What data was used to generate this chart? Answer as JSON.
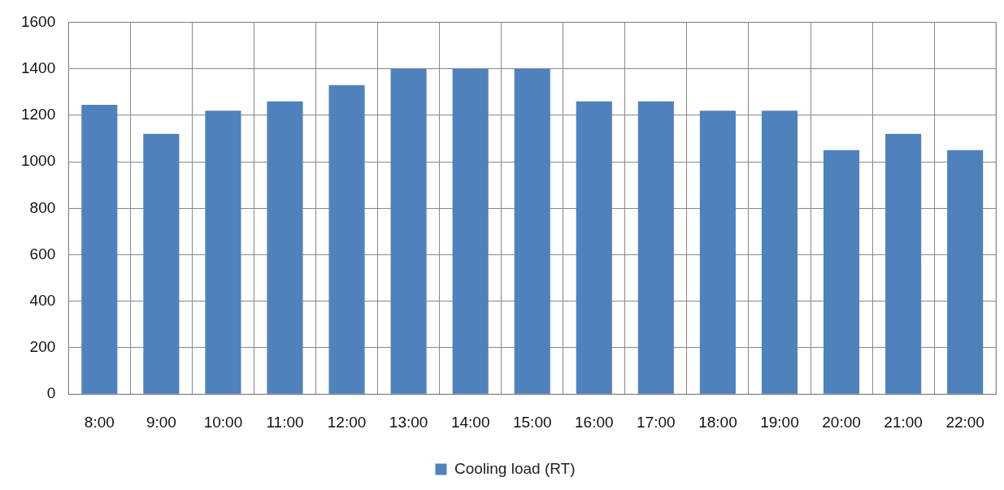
{
  "chart_data": {
    "type": "bar",
    "categories": [
      "8:00",
      "9:00",
      "10:00",
      "11:00",
      "12:00",
      "13:00",
      "14:00",
      "15:00",
      "16:00",
      "17:00",
      "18:00",
      "19:00",
      "20:00",
      "21:00",
      "22:00"
    ],
    "series": [
      {
        "name": "Cooling load (RT)",
        "color": "#4f81bd",
        "values": [
          1245,
          1120,
          1220,
          1260,
          1330,
          1400,
          1400,
          1400,
          1260,
          1260,
          1220,
          1220,
          1050,
          1120,
          1050
        ]
      }
    ],
    "ylim": [
      0,
      1600
    ],
    "yticks": [
      0,
      200,
      400,
      600,
      800,
      1000,
      1200,
      1400,
      1600
    ],
    "grid": true,
    "legend": "bottom"
  }
}
